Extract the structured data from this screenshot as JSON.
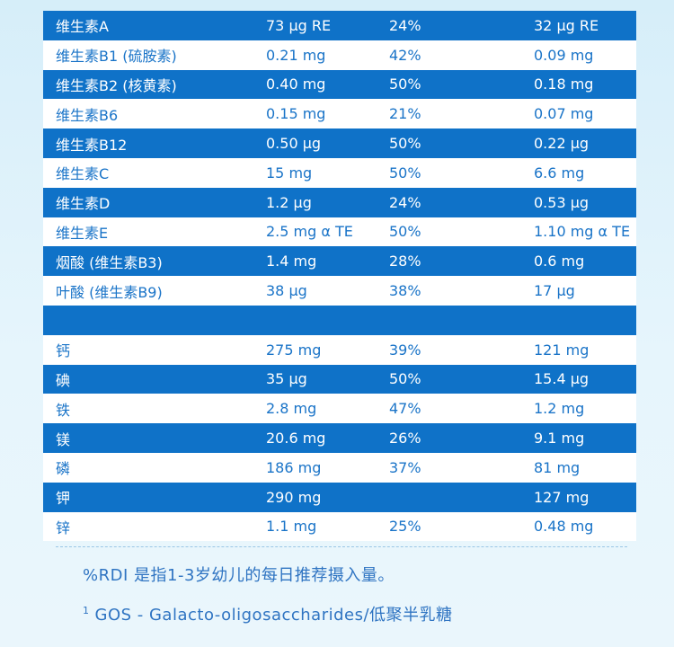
{
  "rows": [
    {
      "style": "blue",
      "name": "维生素A",
      "amount": "73 μg RE",
      "rdi": "24%",
      "per": "32 μg RE"
    },
    {
      "style": "white",
      "name": "维生素B1 (硫胺素)",
      "amount": "0.21 mg",
      "rdi": "42%",
      "per": "0.09 mg"
    },
    {
      "style": "blue",
      "name": "维生素B2 (核黄素)",
      "amount": "0.40 mg",
      "rdi": "50%",
      "per": "0.18 mg"
    },
    {
      "style": "white",
      "name": "维生素B6",
      "amount": "0.15 mg",
      "rdi": "21%",
      "per": "0.07 mg"
    },
    {
      "style": "blue",
      "name": "维生素B12",
      "amount": "0.50 μg",
      "rdi": "50%",
      "per": "0.22 μg"
    },
    {
      "style": "white",
      "name": "维生素C",
      "amount": "15 mg",
      "rdi": "50%",
      "per": "6.6 mg"
    },
    {
      "style": "blue",
      "name": "维生素D",
      "amount": "1.2 μg",
      "rdi": "24%",
      "per": "0.53 μg"
    },
    {
      "style": "white",
      "name": "维生素E",
      "amount": "2.5 mg α TE",
      "rdi": "50%",
      "per": "1.10 mg α TE"
    },
    {
      "style": "blue",
      "name": "烟酸 (维生素B3)",
      "amount": "1.4 mg",
      "rdi": "28%",
      "per": "0.6 mg"
    },
    {
      "style": "white",
      "name": "叶酸 (维生素B9)",
      "amount": "38 μg",
      "rdi": "38%",
      "per": "17 μg"
    },
    {
      "style": "blank-blue",
      "name": "",
      "amount": "",
      "rdi": "",
      "per": ""
    },
    {
      "style": "white",
      "name": "钙",
      "amount": "275 mg",
      "rdi": "39%",
      "per": "121 mg"
    },
    {
      "style": "blue",
      "name": "碘",
      "amount": "35 μg",
      "rdi": "50%",
      "per": "15.4 μg"
    },
    {
      "style": "white",
      "name": "铁",
      "amount": "2.8 mg",
      "rdi": "47%",
      "per": "1.2 mg"
    },
    {
      "style": "blue",
      "name": "镁",
      "amount": "20.6 mg",
      "rdi": "26%",
      "per": "9.1 mg"
    },
    {
      "style": "white",
      "name": "磷",
      "amount": "186 mg",
      "rdi": "37%",
      "per": "81 mg"
    },
    {
      "style": "blue",
      "name": "钾",
      "amount": "290 mg",
      "rdi": "",
      "per": "127 mg"
    },
    {
      "style": "white",
      "name": "锌",
      "amount": "1.1 mg",
      "rdi": "25%",
      "per": "0.48 mg"
    }
  ],
  "footnotes": {
    "rdi_note": "%RDI 是指1-3岁幼儿的每日推荐摄入量。",
    "gos_marker": "1",
    "gos_note": "GOS - Galacto-oligosaccharides/低聚半乳糖"
  }
}
